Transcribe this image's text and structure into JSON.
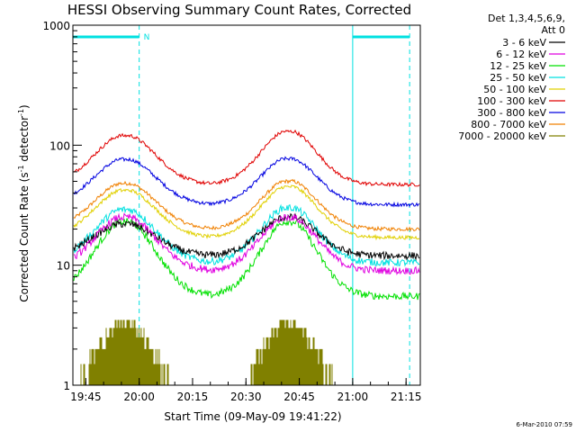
{
  "chart_data": {
    "type": "line",
    "title": "HESSI Observing Summary Count Rates, Corrected",
    "xlabel": "Start Time (09-May-09 19:41:22)",
    "ylabel_main": "Corrected Count Rate (s",
    "ylabel_sup1": "-1",
    "ylabel_mid": " detector",
    "ylabel_sup2": "-1",
    "ylabel_end": ")",
    "y_scale": "log",
    "ylim": [
      1,
      1000
    ],
    "xlim": [
      "19:41:22",
      "21:19:00"
    ],
    "x_ticks": [
      "19:45",
      "20:00",
      "20:15",
      "20:30",
      "20:45",
      "21:00",
      "21:15"
    ],
    "y_ticks": [
      "1",
      "10",
      "100",
      "1000"
    ],
    "grid": false,
    "legend_header": [
      "Det 1,3,4,5,6,9,",
      "Att 0"
    ],
    "legend_position": "top-right outside",
    "series": [
      {
        "name": "3 - 6 keV",
        "color": "#000000",
        "values": {
          "night": 12,
          "peak1": 22,
          "peak2": 25
        }
      },
      {
        "name": "6 - 12 keV",
        "color": "#e000e0",
        "values": {
          "night": 9,
          "peak1": 25,
          "peak2": 25
        }
      },
      {
        "name": "12 - 25 keV",
        "color": "#00e000",
        "values": {
          "night": 5.5,
          "peak1": 23,
          "peak2": 23
        }
      },
      {
        "name": "25 - 50 keV",
        "color": "#00e0e0",
        "values": {
          "night": 10.5,
          "peak1": 29,
          "peak2": 30
        }
      },
      {
        "name": "50 - 100 keV",
        "color": "#e0d000",
        "values": {
          "night": 17,
          "peak1": 42,
          "peak2": 45
        }
      },
      {
        "name": "100 - 300 keV",
        "color": "#e00000",
        "values": {
          "night": 47,
          "peak1": 120,
          "peak2": 130
        }
      },
      {
        "name": "300 - 800 keV",
        "color": "#0000e0",
        "values": {
          "night": 32,
          "peak1": 76,
          "peak2": 77
        }
      },
      {
        "name": "800 - 7000 keV",
        "color": "#f08000",
        "values": {
          "night": 20,
          "peak1": 48,
          "peak2": 50
        }
      },
      {
        "name": "7000 - 20000 keV",
        "color": "#808000",
        "values": {
          "night": 0,
          "peak1": 3.5,
          "peak2": 3.5
        }
      }
    ],
    "annotations": {
      "n_marker": "N",
      "timestamp": "6-Mar-2010 07:59"
    }
  }
}
